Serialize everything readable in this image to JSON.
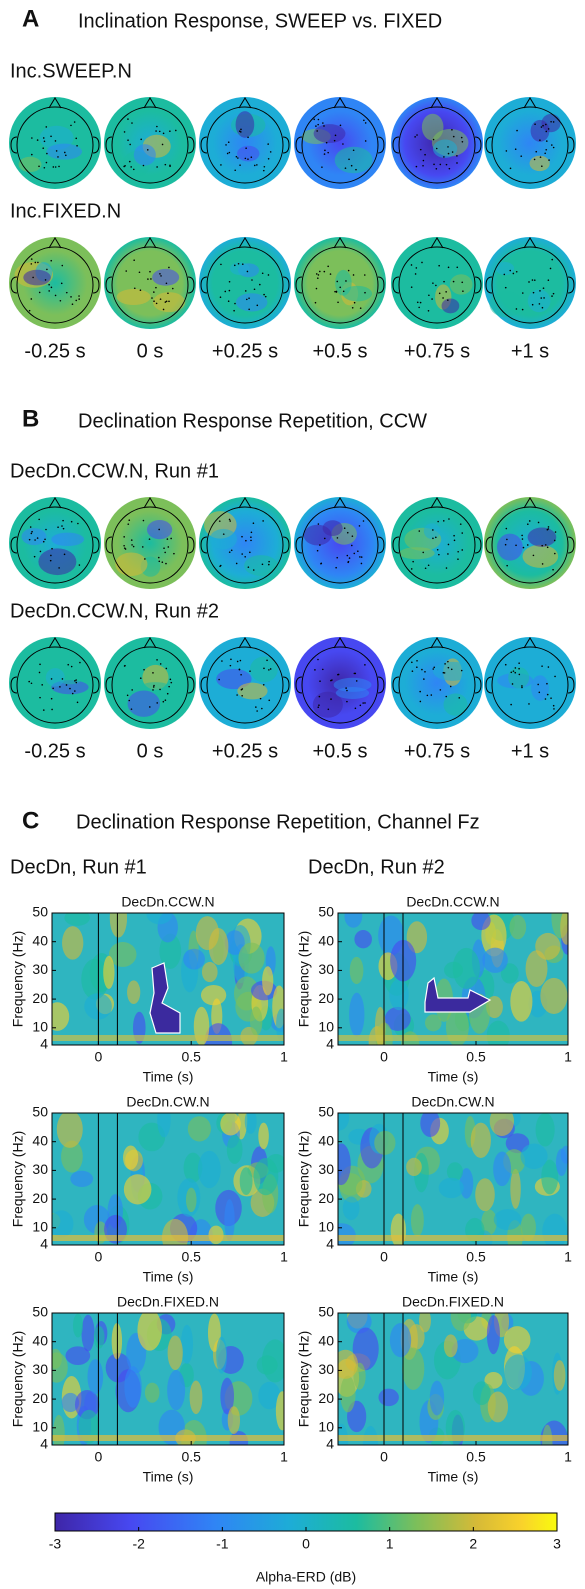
{
  "panels": [
    {
      "letter": "A",
      "title": "Inclination Response, SWEEP vs. FIXED",
      "rows": [
        {
          "label": "Inc.SWEEP.N"
        },
        {
          "label": "Inc.FIXED.N"
        }
      ],
      "times": [
        "-0.25 s",
        "0 s",
        "+0.25 s",
        "+0.5 s",
        "+0.75 s",
        "+1 s"
      ]
    },
    {
      "letter": "B",
      "title": "Declination Response Repetition, CCW",
      "rows": [
        {
          "label": "DecDn.CCW.N, Run #1"
        },
        {
          "label": "DecDn.CCW.N, Run #2"
        }
      ],
      "times": [
        "-0.25 s",
        "0 s",
        "+0.25 s",
        "+0.5 s",
        "+0.75 s",
        "+1 s"
      ]
    }
  ],
  "panel_c": {
    "letter": "C",
    "title": "Declination Response Repetition, Channel Fz",
    "columns": [
      {
        "label": "DecDn, Run #1"
      },
      {
        "label": "DecDn, Run #2"
      }
    ],
    "plot_titles": [
      "DecDn.CCW.N",
      "DecDn.CW.N",
      "DecDn.FIXED.N"
    ],
    "xlabel": "Time (s)",
    "ylabel": "Frequency (Hz)",
    "xlim": [
      -0.25,
      1
    ],
    "xticks": [
      0,
      0.5,
      1
    ],
    "ylim": [
      4,
      50
    ],
    "yticks": [
      4,
      10,
      20,
      30,
      40,
      50
    ]
  },
  "colorbar": {
    "label": "Alpha-ERD (dB)",
    "lim": [
      -3,
      3
    ],
    "ticks": [
      -3,
      -2,
      -1,
      0,
      1,
      2,
      3
    ]
  }
}
